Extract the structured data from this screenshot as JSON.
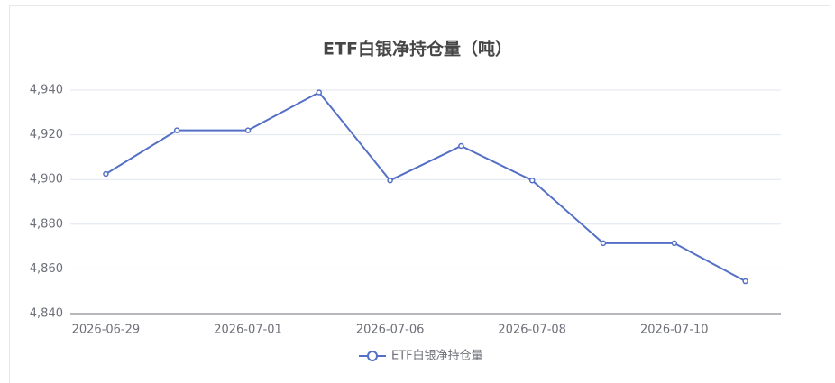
{
  "chart_data": {
    "type": "line",
    "title": "ETF白银净持仓量（吨）",
    "categories": [
      "2026-06-29",
      null,
      "2026-07-01",
      null,
      "2026-07-06",
      null,
      "2026-07-08",
      null,
      "2026-07-10",
      null
    ],
    "series": [
      {
        "name": "ETF白银净持仓量",
        "color": "#5470c6",
        "values": [
          4902.5,
          4922,
          4922,
          4939,
          4899.6,
          4915,
          4899.6,
          4871.5,
          4871.5,
          4854.5
        ]
      }
    ],
    "ylim": [
      4840,
      4940
    ],
    "yticks": [
      {
        "value": 4840,
        "label": "4,840"
      },
      {
        "value": 4860,
        "label": "4,860"
      },
      {
        "value": 4880,
        "label": "4,880"
      },
      {
        "value": 4900,
        "label": "4,900"
      },
      {
        "value": 4920,
        "label": "4,920"
      },
      {
        "value": 4940,
        "label": "4,940"
      }
    ],
    "grid": true
  }
}
